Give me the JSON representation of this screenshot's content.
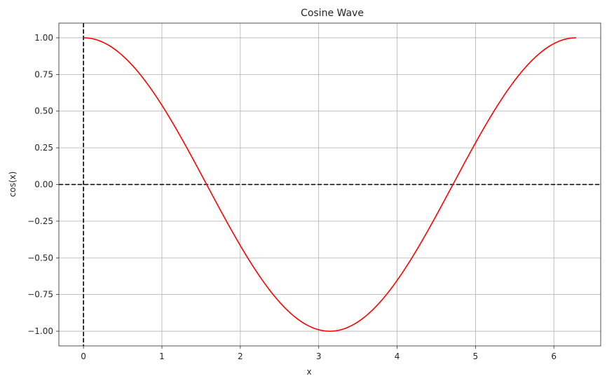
{
  "chart_data": {
    "type": "line",
    "title": "Cosine Wave",
    "xlabel": "x",
    "ylabel": "cos(x)",
    "xlim": [
      -0.314,
      6.597
    ],
    "ylim": [
      -1.1,
      1.1
    ],
    "xticks": [
      0,
      1,
      2,
      3,
      4,
      5,
      6
    ],
    "xtick_labels": [
      "0",
      "1",
      "2",
      "3",
      "4",
      "5",
      "6"
    ],
    "yticks": [
      -1.0,
      -0.75,
      -0.5,
      -0.25,
      0.0,
      0.25,
      0.5,
      0.75,
      1.0
    ],
    "ytick_labels": [
      "−1.00",
      "−0.75",
      "−0.50",
      "−0.25",
      "0.00",
      "0.25",
      "0.50",
      "0.75",
      "1.00"
    ],
    "grid": true,
    "reference_lines": [
      {
        "orientation": "horizontal",
        "value": 0,
        "style": "dashed",
        "color": "#000000"
      },
      {
        "orientation": "vertical",
        "value": 0,
        "style": "dashed",
        "color": "#000000"
      }
    ],
    "series": [
      {
        "color": "#ff0000",
        "function": "cos",
        "x_range": [
          0,
          6.2832
        ],
        "x": [
          0,
          0.5,
          1.0,
          1.5,
          1.5708,
          2.0,
          2.5,
          3.0,
          3.1416,
          3.5,
          4.0,
          4.5,
          4.7124,
          5.0,
          5.5,
          6.0,
          6.2832
        ],
        "y": [
          1.0,
          0.878,
          0.54,
          0.071,
          0.0,
          -0.416,
          -0.801,
          -0.99,
          -1.0,
          -0.936,
          -0.654,
          -0.211,
          0.0,
          0.284,
          0.709,
          0.96,
          1.0
        ]
      }
    ]
  },
  "colors": {
    "grid": "#b0b0b0",
    "spine": "#262626",
    "text": "#262626"
  }
}
